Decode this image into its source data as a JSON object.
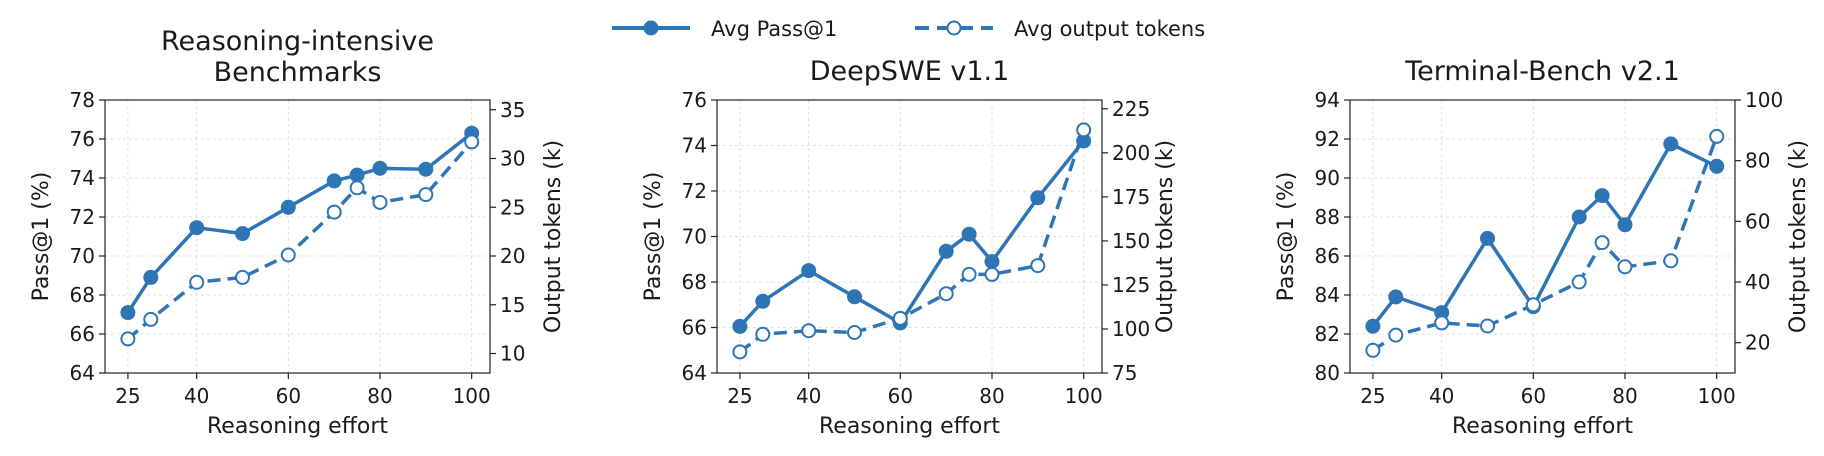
{
  "colors": {
    "series": "#2e75b6"
  },
  "legend": {
    "items": [
      {
        "label": "Avg Pass@1",
        "style": "solid",
        "marker": "filled-circle"
      },
      {
        "label": "Avg output tokens",
        "style": "dashed",
        "marker": "open-circle"
      }
    ]
  },
  "chart_data": [
    {
      "type": "line",
      "title": [
        "Reasoning-intensive",
        "Benchmarks"
      ],
      "xlabel": "Reasoning effort",
      "ylabel": "Pass@1 (%)",
      "y2label": "Output tokens (k)",
      "xticks": [
        25,
        40,
        60,
        80,
        100
      ],
      "xlim": [
        20,
        104
      ],
      "ylim": [
        64,
        78
      ],
      "yticks": [
        64,
        66,
        68,
        70,
        72,
        74,
        76,
        78
      ],
      "y2lim": [
        8,
        36
      ],
      "y2ticks": [
        10,
        15,
        20,
        25,
        30,
        35
      ],
      "grid": true,
      "x": [
        25,
        30,
        40,
        50,
        60,
        70,
        75,
        80,
        90,
        100
      ],
      "series": [
        {
          "name": "Avg Pass@1",
          "axis": "left",
          "values": [
            67.1,
            68.9,
            71.45,
            71.15,
            72.5,
            73.85,
            74.15,
            74.5,
            74.45,
            76.3
          ]
        },
        {
          "name": "Avg output tokens",
          "axis": "right",
          "values": [
            11.5,
            13.5,
            17.3,
            17.8,
            20.1,
            24.5,
            27.0,
            25.5,
            26.3,
            31.7
          ]
        }
      ]
    },
    {
      "type": "line",
      "title": [
        "DeepSWE v1.1"
      ],
      "xlabel": "Reasoning effort",
      "ylabel": "Pass@1 (%)",
      "y2label": "Output tokens (k)",
      "xticks": [
        25,
        40,
        60,
        80,
        100
      ],
      "xlim": [
        20,
        104
      ],
      "ylim": [
        64,
        76
      ],
      "yticks": [
        64,
        66,
        68,
        70,
        72,
        74,
        76
      ],
      "y2lim": [
        75,
        230
      ],
      "y2ticks": [
        75,
        100,
        125,
        150,
        175,
        200,
        225
      ],
      "grid": true,
      "x": [
        25,
        30,
        40,
        50,
        60,
        70,
        75,
        80,
        90,
        100
      ],
      "series": [
        {
          "name": "Avg Pass@1",
          "axis": "left",
          "values": [
            66.05,
            67.15,
            68.5,
            67.35,
            66.2,
            69.35,
            70.1,
            68.9,
            71.7,
            74.2
          ]
        },
        {
          "name": "Avg output tokens",
          "axis": "right",
          "values": [
            87,
            97,
            99,
            98,
            106,
            120,
            131,
            131,
            136,
            213
          ]
        }
      ]
    },
    {
      "type": "line",
      "title": [
        "Terminal-Bench v2.1"
      ],
      "xlabel": "Reasoning effort",
      "ylabel": "Pass@1 (%)",
      "y2label": "Output tokens (k)",
      "xticks": [
        25,
        40,
        60,
        80,
        100
      ],
      "xlim": [
        20,
        104
      ],
      "ylim": [
        80,
        94
      ],
      "yticks": [
        80,
        82,
        84,
        86,
        88,
        90,
        92,
        94
      ],
      "y2lim": [
        10,
        100
      ],
      "y2ticks": [
        20,
        40,
        60,
        80,
        100
      ],
      "grid": true,
      "x": [
        25,
        30,
        40,
        50,
        60,
        70,
        75,
        80,
        90,
        100
      ],
      "series": [
        {
          "name": "Avg Pass@1",
          "axis": "left",
          "values": [
            82.4,
            83.9,
            83.1,
            86.9,
            83.4,
            88.0,
            89.1,
            87.6,
            91.75,
            90.6
          ]
        },
        {
          "name": "Avg output tokens",
          "axis": "right",
          "values": [
            17.5,
            22.5,
            26.5,
            25.5,
            32.5,
            40.0,
            53.0,
            45.0,
            47.0,
            88.0
          ]
        }
      ]
    }
  ]
}
